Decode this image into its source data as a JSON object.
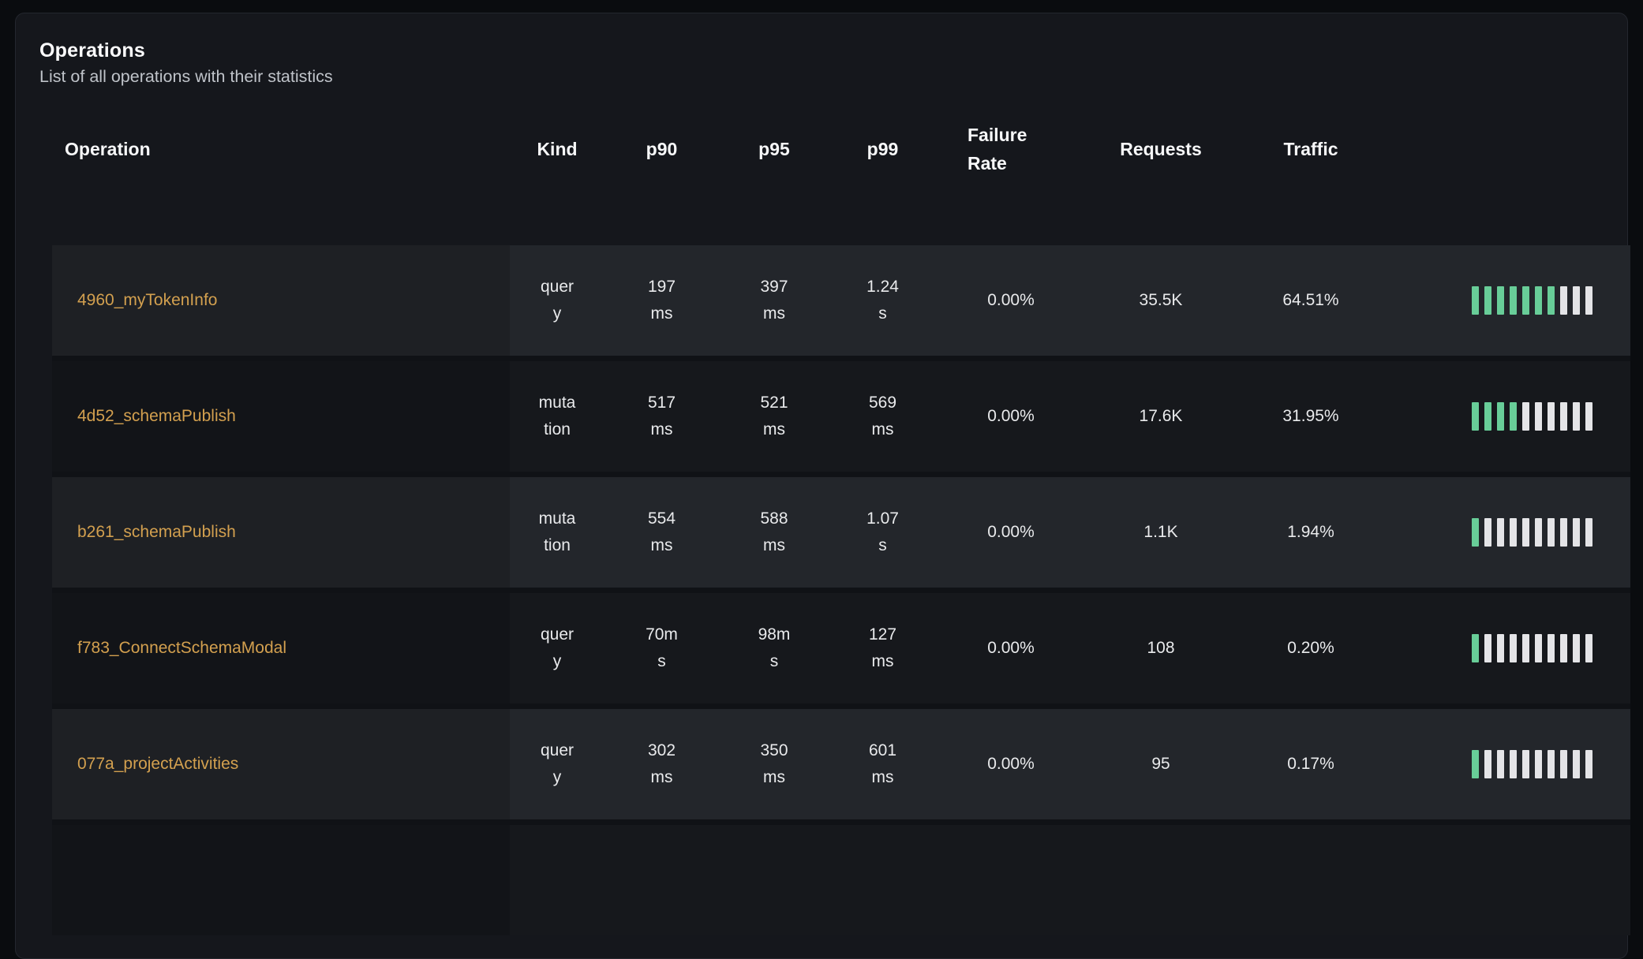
{
  "page": {
    "title": "Operations",
    "subtitle": "List of all operations with their statistics"
  },
  "colors": {
    "operation_link": "#d3a04f",
    "traffic_bar_active": "#68cd98",
    "traffic_bar_inactive": "#e4e4e7",
    "card_background": "#15171c",
    "row_light": "#23262b",
    "row_dark": "#16181c"
  },
  "table": {
    "columns": [
      "Operation",
      "Kind",
      "p90",
      "p95",
      "p99",
      "Failure Rate",
      "Requests",
      "Traffic"
    ],
    "rows": [
      {
        "operation": "4960_myTokenInfo",
        "kind": "query",
        "p90": "197ms",
        "p95": "397ms",
        "p99": "1.24s",
        "failure_rate": "0.00%",
        "requests": "35.5K",
        "traffic": "64.51%",
        "traffic_bars_active": 7,
        "traffic_bars_total": 10
      },
      {
        "operation": "4d52_schemaPublish",
        "kind": "mutation",
        "p90": "517ms",
        "p95": "521ms",
        "p99": "569ms",
        "failure_rate": "0.00%",
        "requests": "17.6K",
        "traffic": "31.95%",
        "traffic_bars_active": 4,
        "traffic_bars_total": 10
      },
      {
        "operation": "b261_schemaPublish",
        "kind": "mutation",
        "p90": "554ms",
        "p95": "588ms",
        "p99": "1.07s",
        "failure_rate": "0.00%",
        "requests": "1.1K",
        "traffic": "1.94%",
        "traffic_bars_active": 1,
        "traffic_bars_total": 10
      },
      {
        "operation": "f783_ConnectSchemaModal",
        "kind": "query",
        "p90": "70ms",
        "p95": "98ms",
        "p99": "127ms",
        "failure_rate": "0.00%",
        "requests": "108",
        "traffic": "0.20%",
        "traffic_bars_active": 1,
        "traffic_bars_total": 10
      },
      {
        "operation": "077a_projectActivities",
        "kind": "query",
        "p90": "302ms",
        "p95": "350ms",
        "p99": "601ms",
        "failure_rate": "0.00%",
        "requests": "95",
        "traffic": "0.17%",
        "traffic_bars_active": 1,
        "traffic_bars_total": 10
      }
    ]
  }
}
